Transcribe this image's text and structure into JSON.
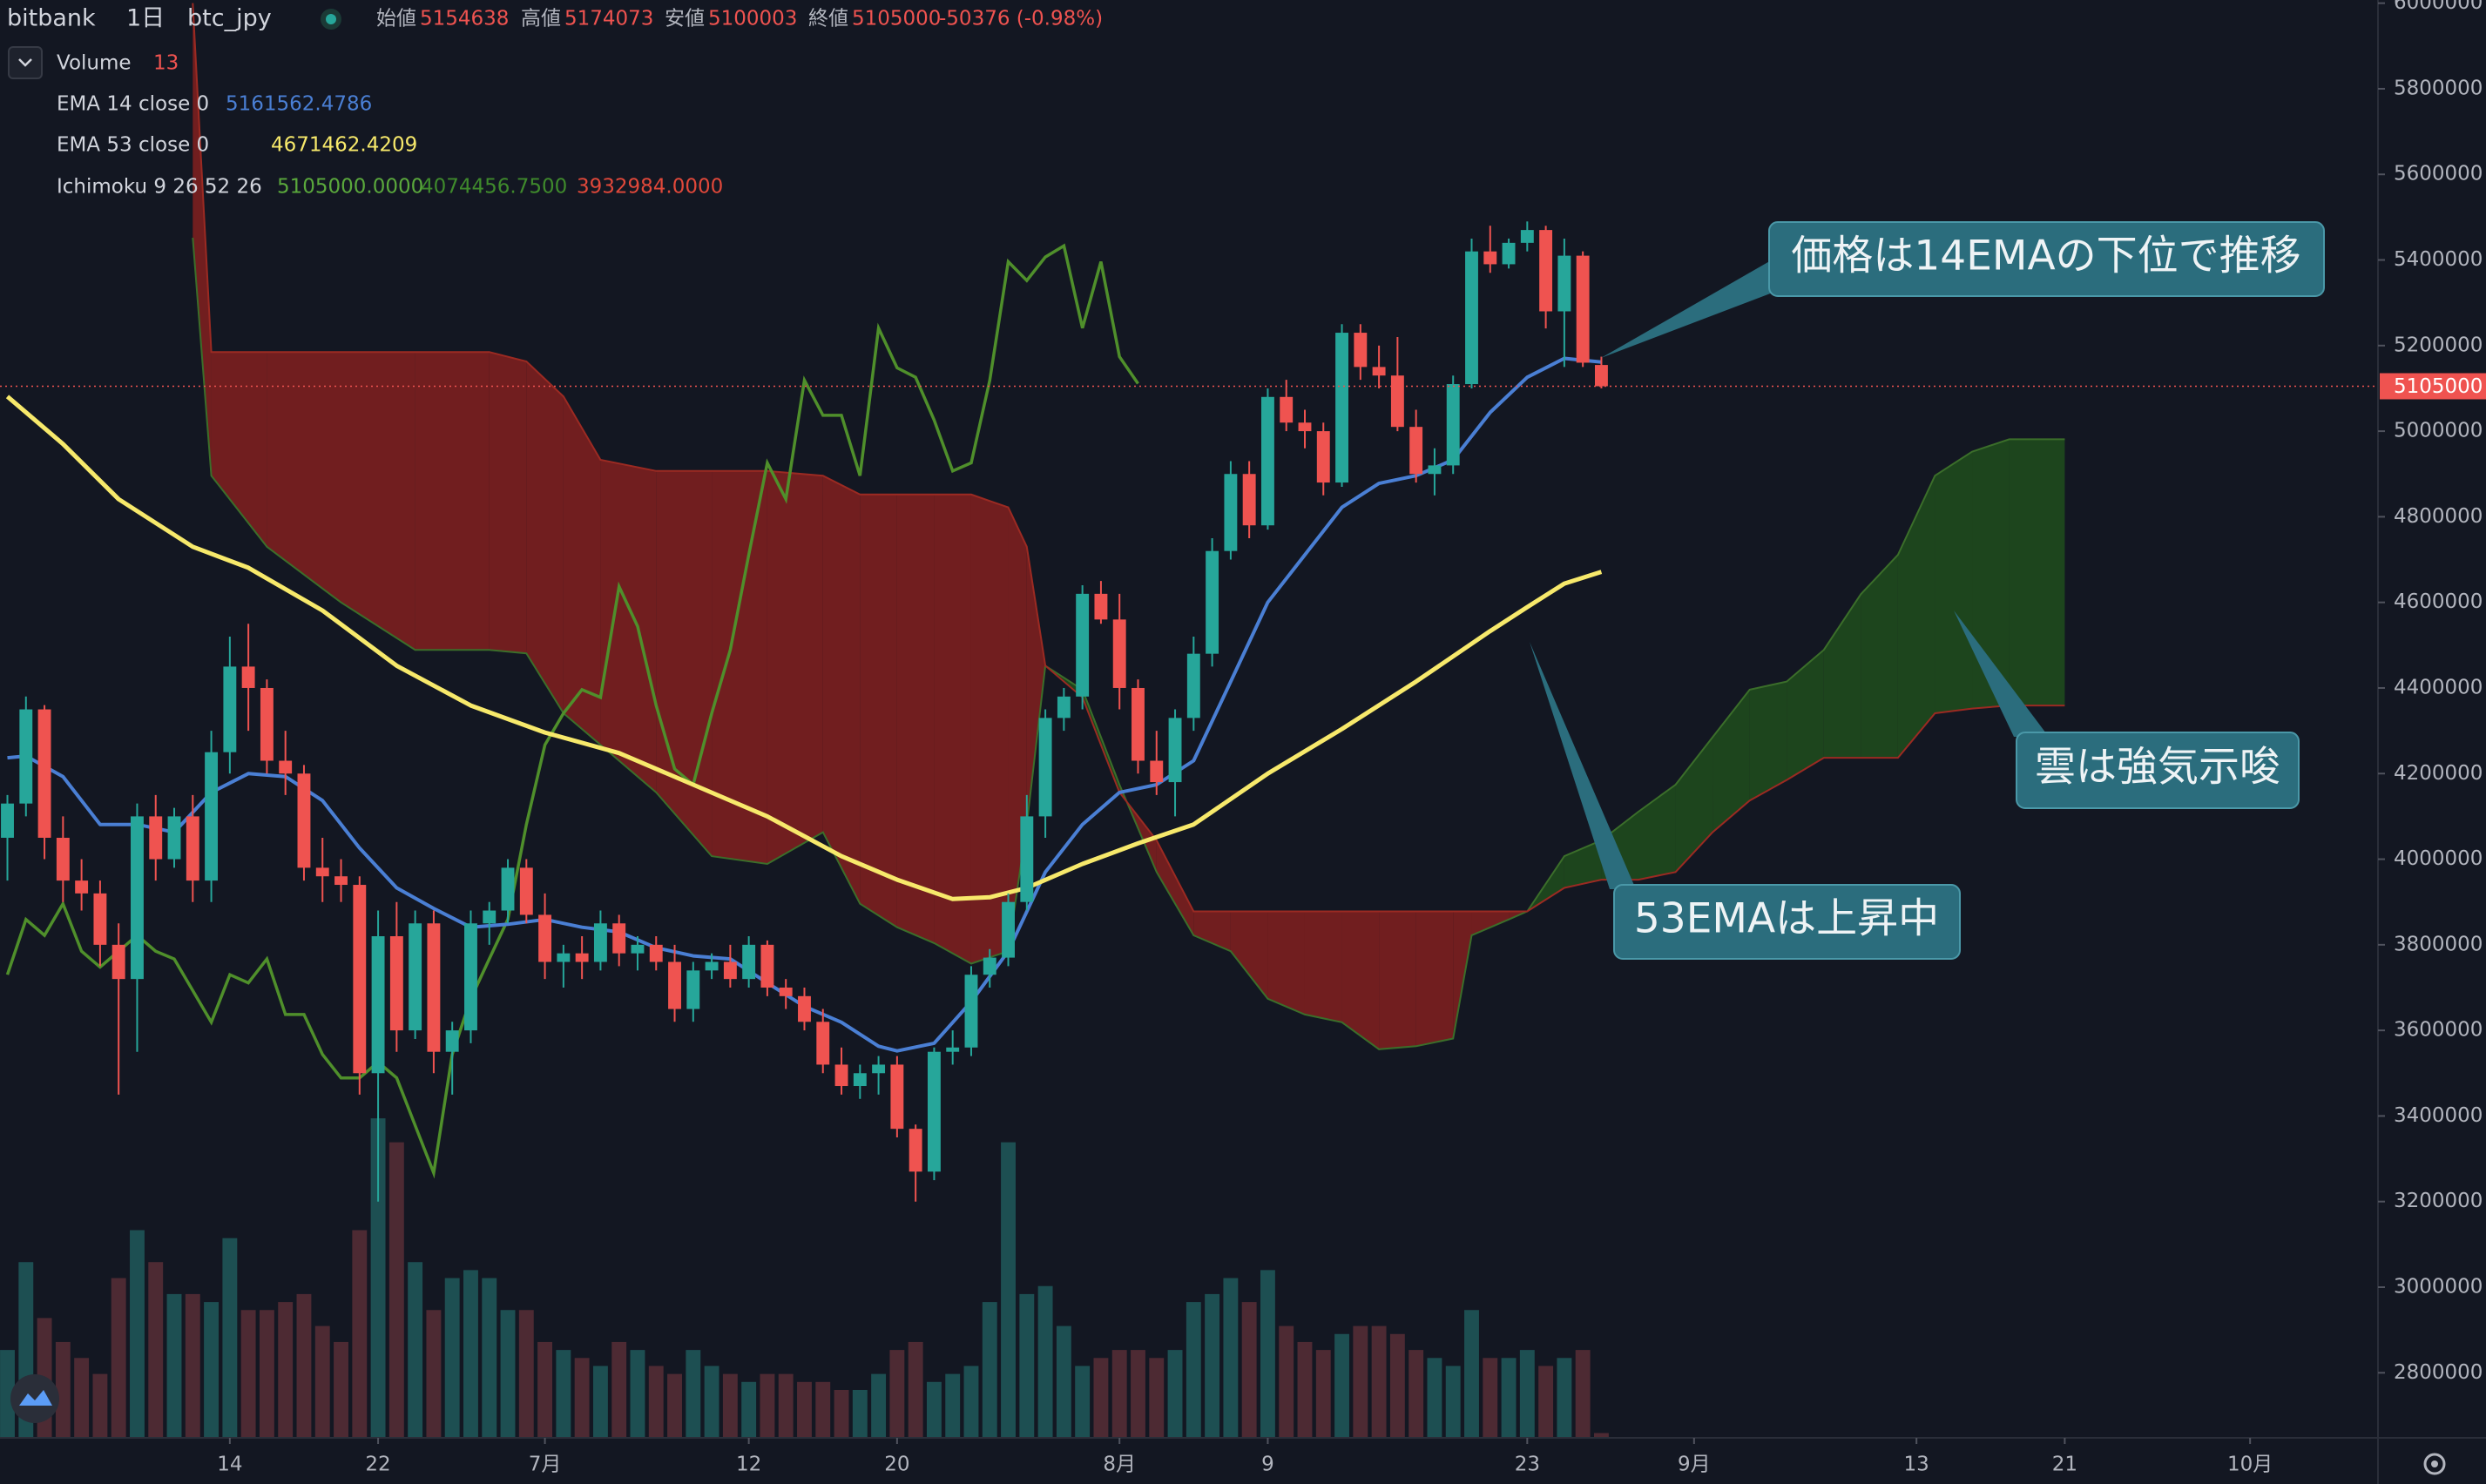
{
  "header": {
    "exchange": "bitbank",
    "interval": "1日",
    "symbol": "btc_jpy",
    "open_label": "始値",
    "high_label": "高値",
    "low_label": "安値",
    "close_label": "終値",
    "change": "-50376 (-0.98%)"
  },
  "chart_data": {
    "type": "candlestick",
    "ylim": [
      2648000,
      6007400
    ],
    "yticks": [
      2800000,
      3000000,
      3200000,
      3400000,
      3600000,
      3800000,
      4000000,
      4200000,
      4400000,
      4600000,
      4800000,
      5000000,
      5200000,
      5400000,
      5600000,
      5800000,
      6000000
    ],
    "xlim": [
      -0.4,
      127.9
    ],
    "xticks": [
      {
        "value": 12,
        "label": "14"
      },
      {
        "value": 20,
        "label": "22"
      },
      {
        "value": 29,
        "label": "7月"
      },
      {
        "value": 40,
        "label": "12"
      },
      {
        "value": 48,
        "label": "20"
      },
      {
        "value": 60,
        "label": "8月"
      },
      {
        "value": 68,
        "label": "9"
      },
      {
        "value": 82,
        "label": "23"
      },
      {
        "value": 91,
        "label": "9月"
      },
      {
        "value": 103,
        "label": "13"
      },
      {
        "value": 111,
        "label": "21"
      },
      {
        "value": 121,
        "label": "10月"
      }
    ],
    "grid": false,
    "colors": {
      "up": "#26a69a",
      "down": "#ef5350",
      "up_volume": "#1d4f52",
      "down_volume": "#4d2a33",
      "last_price": "#ef5350"
    },
    "x": [
      0,
      1,
      2,
      3,
      4,
      5,
      6,
      7,
      8,
      9,
      10,
      11,
      12,
      13,
      14,
      15,
      16,
      17,
      18,
      19,
      20,
      21,
      22,
      23,
      24,
      25,
      26,
      27,
      28,
      29,
      30,
      31,
      32,
      33,
      34,
      35,
      36,
      37,
      38,
      39,
      40,
      41,
      42,
      43,
      44,
      45,
      46,
      47,
      48,
      49,
      50,
      51,
      52,
      53,
      54,
      55,
      56,
      57,
      58,
      59,
      60,
      61,
      62,
      63,
      64,
      65,
      66,
      67,
      68,
      69,
      70,
      71,
      72,
      73,
      74,
      75,
      76,
      77,
      78,
      79,
      80,
      81,
      82,
      83,
      84,
      85,
      86
    ],
    "candles": [
      [
        4050000,
        4150000,
        3950000,
        4130000
      ],
      [
        4130000,
        4380000,
        4100000,
        4350000
      ],
      [
        4350000,
        4360000,
        4000000,
        4050000
      ],
      [
        4050000,
        4100000,
        3900000,
        3950000
      ],
      [
        3950000,
        4000000,
        3880000,
        3920000
      ],
      [
        3920000,
        3950000,
        3750000,
        3800000
      ],
      [
        3800000,
        3850000,
        3450000,
        3720000
      ],
      [
        3720000,
        4130000,
        3550000,
        4100000
      ],
      [
        4100000,
        4150000,
        3950000,
        4000000
      ],
      [
        4000000,
        4120000,
        3980000,
        4100000
      ],
      [
        4100000,
        4150000,
        3900000,
        3950000
      ],
      [
        3950000,
        4300000,
        3900000,
        4250000
      ],
      [
        4250000,
        4520000,
        4200000,
        4450000
      ],
      [
        4450000,
        4550000,
        4300000,
        4400000
      ],
      [
        4400000,
        4420000,
        4200000,
        4230000
      ],
      [
        4230000,
        4300000,
        4150000,
        4200000
      ],
      [
        4200000,
        4220000,
        3950000,
        3980000
      ],
      [
        3980000,
        4050000,
        3900000,
        3960000
      ],
      [
        3960000,
        4000000,
        3900000,
        3940000
      ],
      [
        3940000,
        3960000,
        3450000,
        3500000
      ],
      [
        3500000,
        3880000,
        3200000,
        3820000
      ],
      [
        3820000,
        3900000,
        3550000,
        3600000
      ],
      [
        3600000,
        3880000,
        3580000,
        3850000
      ],
      [
        3850000,
        3880000,
        3500000,
        3550000
      ],
      [
        3550000,
        3620000,
        3450000,
        3600000
      ],
      [
        3600000,
        3880000,
        3570000,
        3850000
      ],
      [
        3850000,
        3900000,
        3800000,
        3880000
      ],
      [
        3880000,
        4000000,
        3850000,
        3980000
      ],
      [
        3980000,
        4000000,
        3850000,
        3870000
      ],
      [
        3870000,
        3920000,
        3720000,
        3760000
      ],
      [
        3760000,
        3800000,
        3700000,
        3780000
      ],
      [
        3780000,
        3820000,
        3720000,
        3760000
      ],
      [
        3760000,
        3880000,
        3740000,
        3850000
      ],
      [
        3850000,
        3870000,
        3750000,
        3780000
      ],
      [
        3780000,
        3820000,
        3740000,
        3800000
      ],
      [
        3800000,
        3820000,
        3740000,
        3760000
      ],
      [
        3760000,
        3800000,
        3620000,
        3650000
      ],
      [
        3650000,
        3760000,
        3620000,
        3740000
      ],
      [
        3740000,
        3780000,
        3720000,
        3760000
      ],
      [
        3760000,
        3800000,
        3700000,
        3720000
      ],
      [
        3720000,
        3820000,
        3700000,
        3800000
      ],
      [
        3800000,
        3810000,
        3680000,
        3700000
      ],
      [
        3700000,
        3720000,
        3650000,
        3680000
      ],
      [
        3680000,
        3700000,
        3600000,
        3620000
      ],
      [
        3620000,
        3650000,
        3500000,
        3520000
      ],
      [
        3520000,
        3560000,
        3450000,
        3470000
      ],
      [
        3470000,
        3520000,
        3440000,
        3500000
      ],
      [
        3500000,
        3540000,
        3450000,
        3520000
      ],
      [
        3520000,
        3540000,
        3350000,
        3370000
      ],
      [
        3370000,
        3380000,
        3200000,
        3270000
      ],
      [
        3270000,
        3560000,
        3250000,
        3550000
      ],
      [
        3550000,
        3600000,
        3520000,
        3560000
      ],
      [
        3560000,
        3750000,
        3540000,
        3730000
      ],
      [
        3730000,
        3790000,
        3700000,
        3770000
      ],
      [
        3770000,
        3920000,
        3750000,
        3900000
      ],
      [
        3900000,
        4150000,
        3880000,
        4100000
      ],
      [
        4100000,
        4350000,
        4050000,
        4330000
      ],
      [
        4330000,
        4400000,
        4300000,
        4380000
      ],
      [
        4380000,
        4640000,
        4350000,
        4620000
      ],
      [
        4620000,
        4650000,
        4550000,
        4560000
      ],
      [
        4560000,
        4620000,
        4350000,
        4400000
      ],
      [
        4400000,
        4420000,
        4200000,
        4230000
      ],
      [
        4230000,
        4300000,
        4150000,
        4180000
      ],
      [
        4180000,
        4350000,
        4100000,
        4330000
      ],
      [
        4330000,
        4520000,
        4300000,
        4480000
      ],
      [
        4480000,
        4750000,
        4450000,
        4720000
      ],
      [
        4720000,
        4930000,
        4700000,
        4900000
      ],
      [
        4900000,
        4930000,
        4750000,
        4780000
      ],
      [
        4780000,
        5100000,
        4770000,
        5080000
      ],
      [
        5080000,
        5120000,
        5000000,
        5020000
      ],
      [
        5020000,
        5050000,
        4960000,
        5000000
      ],
      [
        5000000,
        5020000,
        4850000,
        4880000
      ],
      [
        4880000,
        5250000,
        4870000,
        5230000
      ],
      [
        5230000,
        5250000,
        5120000,
        5150000
      ],
      [
        5150000,
        5200000,
        5100000,
        5130000
      ],
      [
        5130000,
        5220000,
        5000000,
        5010000
      ],
      [
        5010000,
        5050000,
        4880000,
        4900000
      ],
      [
        4900000,
        4960000,
        4850000,
        4920000
      ],
      [
        4920000,
        5130000,
        4900000,
        5110000
      ],
      [
        5110000,
        5450000,
        5100000,
        5420000
      ],
      [
        5420000,
        5480000,
        5370000,
        5390000
      ],
      [
        5390000,
        5450000,
        5380000,
        5440000
      ],
      [
        5440000,
        5490000,
        5420000,
        5470000
      ],
      [
        5470000,
        5480000,
        5240000,
        5280000
      ],
      [
        5280000,
        5450000,
        5150000,
        5410000
      ],
      [
        5410000,
        5420000,
        5150000,
        5160000
      ],
      [
        5154638,
        5174073,
        5100003,
        5105000
      ]
    ],
    "volume": {
      "name": "Volume",
      "period": 13,
      "ylim": [
        0,
        900
      ],
      "values": [
        55,
        110,
        75,
        60,
        50,
        40,
        100,
        130,
        110,
        90,
        90,
        85,
        125,
        80,
        80,
        85,
        90,
        70,
        60,
        130,
        200,
        185,
        110,
        80,
        100,
        105,
        100,
        80,
        80,
        60,
        55,
        50,
        45,
        60,
        55,
        45,
        40,
        55,
        45,
        40,
        35,
        40,
        40,
        35,
        35,
        30,
        30,
        40,
        55,
        60,
        35,
        40,
        45,
        85,
        185,
        90,
        95,
        70,
        45,
        50,
        55,
        55,
        50,
        55,
        85,
        90,
        100,
        85,
        105,
        70,
        60,
        55,
        65,
        70,
        70,
        65,
        55,
        50,
        45,
        80,
        50,
        50,
        55,
        45,
        50,
        55,
        3
      ]
    },
    "series": [
      {
        "name": "EMA 14 close 0",
        "color": "#4a7fd4",
        "x": [
          0,
          1,
          3,
          5,
          7,
          9,
          11,
          13,
          15,
          17,
          19,
          21,
          23,
          25,
          27,
          29,
          31,
          33,
          35,
          37,
          39,
          41,
          43,
          45,
          47,
          48,
          50,
          52,
          54,
          56,
          58,
          60,
          62,
          64,
          66,
          68,
          70,
          72,
          74,
          76,
          78,
          80,
          82,
          84,
          86
        ],
        "values": [
          4237000,
          4241000,
          4193000,
          4081000,
          4081000,
          4063000,
          4156000,
          4200000,
          4193000,
          4137000,
          4026000,
          3933000,
          3885000,
          3841000,
          3848000,
          3859000,
          3841000,
          3830000,
          3793000,
          3774000,
          3767000,
          3711000,
          3656000,
          3619000,
          3563000,
          3552000,
          3570000,
          3667000,
          3785000,
          3970000,
          4081000,
          4156000,
          4174000,
          4230000,
          4415000,
          4600000,
          4711000,
          4822000,
          4878000,
          4896000,
          4933000,
          5044000,
          5126000,
          5170000,
          5161562.4786
        ]
      },
      {
        "name": "EMA 53 close 0",
        "color": "#f7e96b",
        "x": [
          0,
          3,
          6,
          10,
          13,
          17,
          21,
          25,
          29,
          33,
          37,
          41,
          45,
          48,
          51,
          53,
          55,
          58,
          61,
          64,
          68,
          72,
          76,
          80,
          82,
          84,
          86
        ],
        "values": [
          5081000,
          4970000,
          4841000,
          4730000,
          4681000,
          4581000,
          4452000,
          4359000,
          4296000,
          4248000,
          4174000,
          4100000,
          4007000,
          3952000,
          3907000,
          3911000,
          3933000,
          3989000,
          4037000,
          4081000,
          4200000,
          4304000,
          4415000,
          4533000,
          4589000,
          4644000,
          4671462.4209
        ]
      }
    ],
    "ichimoku": {
      "name": "Ichimoku 9 26 52 26",
      "value_labels": [
        "5105000.0000",
        "4074456.7500",
        "3932984.0000"
      ],
      "label_colors": [
        "#5aa83c",
        "#3f8a2c",
        "#e0483a"
      ],
      "lagging": {
        "color": "#4f8f2b",
        "x": [
          0,
          1,
          2,
          3,
          4,
          5,
          6,
          7,
          8,
          9,
          10,
          11,
          12,
          13,
          14,
          15,
          16,
          17,
          18,
          19,
          20,
          21,
          22,
          23,
          24,
          25,
          26,
          27,
          28,
          29,
          30,
          31,
          32,
          33,
          34,
          35,
          36,
          37,
          38,
          39,
          40,
          41,
          42,
          43,
          44,
          45,
          46,
          47,
          48,
          49,
          50,
          51,
          52,
          53,
          54,
          55,
          56,
          57,
          58,
          59,
          60,
          61
        ],
        "values": [
          3730000,
          3859000,
          3822000,
          3896000,
          3785000,
          3748000,
          3785000,
          3822000,
          3785000,
          3767000,
          3693000,
          3619000,
          3730000,
          3711000,
          3767000,
          3637000,
          3637000,
          3544000,
          3489000,
          3489000,
          3526000,
          3489000,
          3378000,
          3267000,
          3544000,
          3674000,
          3767000,
          3859000,
          4081000,
          4267000,
          4341000,
          4396000,
          4378000,
          4637000,
          4544000,
          4359000,
          4211000,
          4174000,
          4341000,
          4489000,
          4711000,
          4926000,
          4841000,
          5119000,
          5037000,
          5037000,
          4896000,
          5241000,
          5148000,
          5126000,
          5026000,
          4907000,
          4926000,
          5119000,
          5396000,
          5352000,
          5407000,
          5433000,
          5241000,
          5396000,
          5174000,
          5111000
        ]
      },
      "cloud": {
        "bull_color": "#1f4a1d",
        "bear_color": "#7c1f1f",
        "span_a_color": "#3b6e2a",
        "span_b_color": "#9b2a22",
        "x": [
          10,
          11,
          14,
          18,
          22,
          26,
          28,
          30,
          32,
          35,
          38,
          41,
          44,
          46,
          48,
          50,
          52,
          54,
          55,
          56,
          58,
          60,
          62,
          64,
          66,
          68,
          70,
          72,
          74,
          76,
          78,
          79,
          81,
          82,
          84,
          86,
          88,
          90,
          92,
          94,
          96,
          98,
          100,
          102,
          104,
          106,
          108,
          111
        ],
        "span_a": [
          5452000,
          4896000,
          4730000,
          4600000,
          4489000,
          4489000,
          4481000,
          4341000,
          4267000,
          4156000,
          4007000,
          3989000,
          4063000,
          3896000,
          3841000,
          3804000,
          3756000,
          3785000,
          4081000,
          4452000,
          4396000,
          4174000,
          3970000,
          3822000,
          3785000,
          3674000,
          3637000,
          3619000,
          3556000,
          3563000,
          3581000,
          3822000,
          3859000,
          3878000,
          4007000,
          4044000,
          4111000,
          4174000,
          4285000,
          4396000,
          4415000,
          4489000,
          4619000,
          4711000,
          4896000,
          4952000,
          4981000,
          4981000
        ],
        "span_b": [
          6000000,
          5185000,
          5185000,
          5185000,
          5185000,
          5185000,
          5163000,
          5081000,
          4933000,
          4907000,
          4907000,
          4907000,
          4896000,
          4852000,
          4852000,
          4852000,
          4852000,
          4822000,
          4730000,
          4452000,
          4378000,
          4156000,
          4044000,
          3878000,
          3878000,
          3878000,
          3878000,
          3878000,
          3878000,
          3878000,
          3878000,
          3878000,
          3878000,
          3878000,
          3933000,
          3952000,
          3952000,
          3970000,
          4063000,
          4137000,
          4185000,
          4237000,
          4237000,
          4237000,
          4341000,
          4352000,
          4359000,
          4359000
        ]
      }
    },
    "annotations": [
      {
        "text": "価格は14EMAの下位で推移"
      },
      {
        "text": "雲は強気示唆"
      },
      {
        "text": "53EMAは上昇中"
      }
    ]
  }
}
